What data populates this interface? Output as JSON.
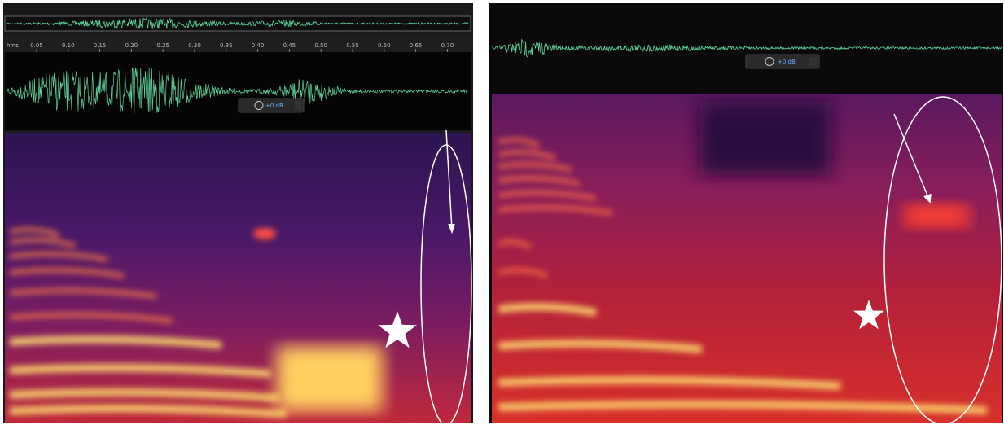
{
  "left_panel": {
    "ruler": {
      "unit": "hms",
      "ticks": [
        "0.05",
        "0.10",
        "0.15",
        "0.20",
        "0.25",
        "0.30",
        "0.35",
        "0.40",
        "0.45",
        "0.50",
        "0.55",
        "0.60",
        "0.65",
        "0.70"
      ]
    },
    "gain": "+0 dB"
  },
  "right_panel": {
    "gain": "+0 dB"
  }
}
